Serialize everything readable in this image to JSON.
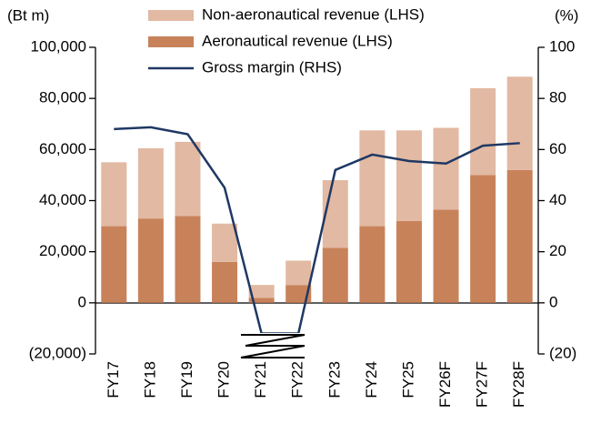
{
  "chart_data": {
    "type": "bar+line",
    "y_axis_label": "(Bt m)",
    "y2_axis_label": "(%)",
    "categories": [
      "FY17",
      "FY18",
      "FY19",
      "FY20",
      "FY21",
      "FY22",
      "FY23",
      "FY24",
      "FY25",
      "FY26F",
      "FY27F",
      "FY28F"
    ],
    "series": [
      {
        "name": "Non-aeronautical revenue (LHS)",
        "type": "bar",
        "color": "#e2b9a2",
        "values": [
          25000,
          27500,
          29000,
          15000,
          5000,
          9500,
          26500,
          37500,
          35500,
          32000,
          34000,
          36500
        ]
      },
      {
        "name": "Aeronautical revenue (LHS)",
        "type": "bar",
        "color": "#c8825a",
        "values": [
          30000,
          33000,
          34000,
          16000,
          2000,
          7000,
          21500,
          30000,
          32000,
          36500,
          50000,
          52000
        ]
      },
      {
        "name": "Gross margin (RHS)",
        "type": "line",
        "axis": "y2",
        "color": "#1f3864",
        "values": [
          68,
          68.7,
          66,
          45,
          -12,
          -12,
          52,
          58,
          55.5,
          54.5,
          61.5,
          62.5
        ]
      }
    ],
    "stacked": true,
    "ylim": [
      -20000,
      100000
    ],
    "yticks": [
      {
        "value": -20000,
        "label": "(20,000)"
      },
      {
        "value": 0,
        "label": "0"
      },
      {
        "value": 20000,
        "label": "20,000"
      },
      {
        "value": 40000,
        "label": "40,000"
      },
      {
        "value": 60000,
        "label": "60,000"
      },
      {
        "value": 80000,
        "label": "80,000"
      },
      {
        "value": 100000,
        "label": "100,000"
      }
    ],
    "y2lim": [
      -20,
      100
    ],
    "y2ticks": [
      {
        "value": -20,
        "label": "(20)"
      },
      0,
      20,
      40,
      60,
      80,
      100
    ]
  }
}
